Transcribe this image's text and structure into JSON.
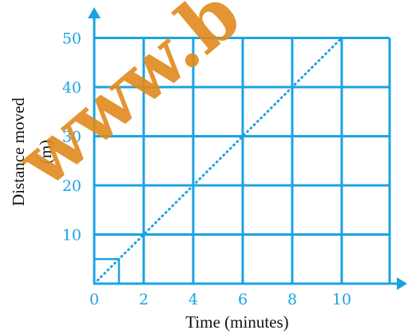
{
  "colors": {
    "grid": "#1aa3e3",
    "line": "#1aa3e3",
    "tick_text": "#1aa3e3",
    "axis_title": "#111111",
    "watermark": "#e08a1e"
  },
  "watermark": "www.b",
  "chart_data": {
    "type": "line",
    "xlabel": "Time (minutes)",
    "ylabel": "Distance moved",
    "ylabel_unit": "(m)",
    "xlim": [
      0,
      12
    ],
    "ylim": [
      0,
      50
    ],
    "x_ticks": [
      0,
      2,
      4,
      6,
      8,
      10
    ],
    "y_ticks": [
      10,
      20,
      30,
      40,
      50
    ],
    "grid": true,
    "grid_x_step": 2,
    "grid_y_step": 10,
    "line_style": "dotted",
    "series": [
      {
        "x": [
          0,
          10
        ],
        "y": [
          0,
          50
        ]
      }
    ],
    "highlight_box": {
      "x": [
        0,
        1
      ],
      "y": [
        0,
        5
      ]
    }
  }
}
